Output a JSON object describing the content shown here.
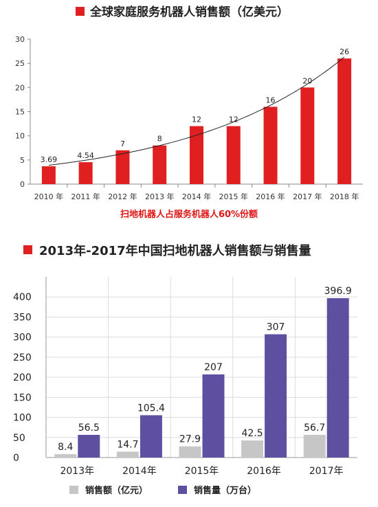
{
  "colors": {
    "red": "#e02020",
    "gray": "#c6c6c6",
    "purple": "#5f4fa0",
    "note": "#e01515"
  },
  "chart_data": [
    {
      "type": "bar",
      "title": "全球家庭服务机器人销售额（亿美元）",
      "categories": [
        "2010 年",
        "2011 年",
        "2012 年",
        "2013 年",
        "2014 年",
        "2015 年",
        "2016 年",
        "2017 年",
        "2018 年"
      ],
      "values": [
        3.69,
        4.54,
        7,
        8,
        12,
        12,
        16,
        20,
        26
      ],
      "value_labels": [
        "3.69",
        "4.54",
        "7",
        "8",
        "12",
        "12",
        "16",
        "20",
        "26"
      ],
      "ylim": [
        0,
        30
      ],
      "yticks": [
        "0",
        "5",
        "10",
        "15",
        "20",
        "25",
        "30"
      ],
      "trendline": true,
      "grid": false,
      "annotation": "扫地机器人占服务机器人60%份额"
    },
    {
      "type": "bar",
      "title": "2013年-2017年中国扫地机器人销售额与销售量",
      "categories": [
        "2013年",
        "2014年",
        "2015年",
        "2016年",
        "2017年"
      ],
      "series": [
        {
          "name": "销售额（亿元）",
          "values": [
            8.4,
            14.7,
            27.9,
            42.5,
            56.7
          ],
          "labels": [
            "8.4",
            "14.7",
            "27.9",
            "42.5",
            "56.7"
          ]
        },
        {
          "name": "销售量（万台）",
          "values": [
            56.5,
            105.4,
            207,
            307,
            396.9
          ],
          "labels": [
            "56.5",
            "105.4",
            "207",
            "307",
            "396.9"
          ]
        }
      ],
      "ylim": [
        0,
        450
      ],
      "yticks": [
        "0",
        "50",
        "100",
        "150",
        "200",
        "250",
        "300",
        "350",
        "400"
      ],
      "grid": true,
      "legend_position": "bottom"
    }
  ]
}
